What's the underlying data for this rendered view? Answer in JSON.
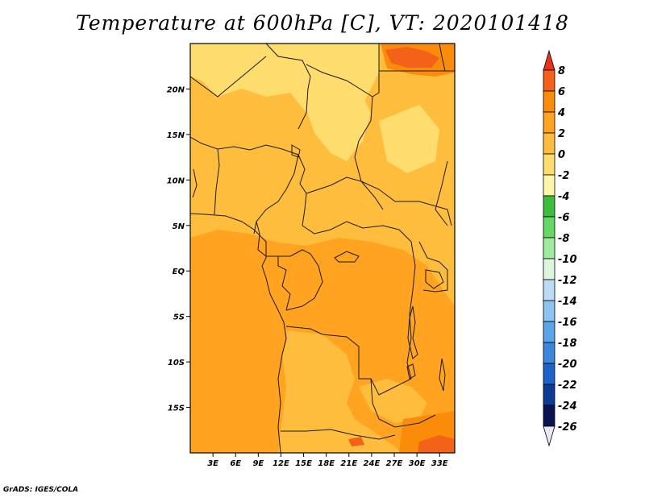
{
  "title": "Temperature at 600hPa [C], VT: 2020101418",
  "footer": "GrADS: IGES/COLA",
  "map": {
    "lon_range": [
      0,
      35
    ],
    "lat_range": [
      -20,
      25
    ],
    "lat_ticks": [
      {
        "label": "20N",
        "lat": 20
      },
      {
        "label": "15N",
        "lat": 15
      },
      {
        "label": "10N",
        "lat": 10
      },
      {
        "label": "5N",
        "lat": 5
      },
      {
        "label": "EQ",
        "lat": 0
      },
      {
        "label": "5S",
        "lat": -5
      },
      {
        "label": "10S",
        "lat": -10
      },
      {
        "label": "15S",
        "lat": -15
      }
    ],
    "lon_ticks": [
      {
        "label": "3E",
        "lon": 3
      },
      {
        "label": "6E",
        "lon": 6
      },
      {
        "label": "9E",
        "lon": 9
      },
      {
        "label": "12E",
        "lon": 12
      },
      {
        "label": "15E",
        "lon": 15
      },
      {
        "label": "18E",
        "lon": 18
      },
      {
        "label": "21E",
        "lon": 21
      },
      {
        "label": "24E",
        "lon": 24
      },
      {
        "label": "27E",
        "lon": 27
      },
      {
        "label": "30E",
        "lon": 30
      },
      {
        "label": "33E",
        "lon": 33
      }
    ]
  },
  "colorbar": {
    "labels": [
      "8",
      "6",
      "4",
      "2",
      "0",
      "-2",
      "-4",
      "-6",
      "-8",
      "-10",
      "-12",
      "-14",
      "-16",
      "-18",
      "-20",
      "-22",
      "-24",
      "-26"
    ],
    "colors": [
      "#e8321a",
      "#f4621a",
      "#fa8c0a",
      "#ffa321",
      "#ffbd3e",
      "#ffdc6e",
      "#fff5aa",
      "#3cbe3c",
      "#64d764",
      "#a0eba0",
      "#dcf5dc",
      "#bcdcf5",
      "#8cc3f0",
      "#5aa5e6",
      "#3c87dc",
      "#1e64c8",
      "#0a3c96",
      "#0a1450",
      "#e8e8f8"
    ]
  },
  "fields": {
    "base_color": "#ffbd3e",
    "warm_color": "#ffa321",
    "warmer_color": "#fa8c0a",
    "hot_color": "#f4621a",
    "cool_color": "#ffdc6e"
  }
}
